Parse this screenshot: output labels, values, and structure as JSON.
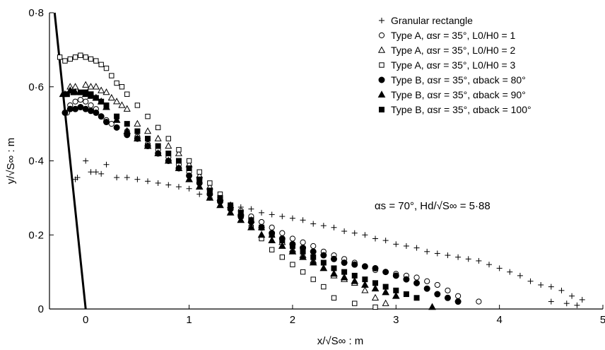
{
  "chart_data": {
    "type": "scatter",
    "xlabel": "x/√S∞ : m",
    "ylabel": "y/√S∞ : m",
    "xlim": [
      -0.35,
      5
    ],
    "ylim": [
      0,
      0.8
    ],
    "xticks": [
      0,
      1,
      2,
      3,
      4,
      5
    ],
    "xtick_labels": [
      "0",
      "1",
      "2",
      "3",
      "4",
      "5"
    ],
    "yticks": [
      0,
      0.2,
      0.4,
      0.6,
      0.8
    ],
    "ytick_labels": [
      "0",
      "0·2",
      "0·4",
      "0·6",
      "0·8"
    ],
    "grid": false,
    "legend_position": "top-right",
    "annotation": "αs = 70°, Hd/√S∞ = 5·88",
    "slope_line": {
      "x": [
        -0.3,
        0.0
      ],
      "y": [
        0.8,
        0.0
      ]
    },
    "series": [
      {
        "name": "Granular rectangle",
        "marker": "plus",
        "points": [
          [
            -0.1,
            0.35
          ],
          [
            -0.08,
            0.355
          ],
          [
            0.0,
            0.4
          ],
          [
            0.2,
            0.39
          ],
          [
            0.05,
            0.37
          ],
          [
            0.1,
            0.37
          ],
          [
            0.15,
            0.365
          ],
          [
            0.3,
            0.355
          ],
          [
            0.4,
            0.355
          ],
          [
            0.5,
            0.35
          ],
          [
            0.6,
            0.345
          ],
          [
            0.7,
            0.34
          ],
          [
            0.8,
            0.335
          ],
          [
            0.9,
            0.33
          ],
          [
            1.0,
            0.325
          ],
          [
            1.1,
            0.31
          ],
          [
            1.2,
            0.3
          ],
          [
            1.3,
            0.29
          ],
          [
            1.4,
            0.28
          ],
          [
            1.5,
            0.275
          ],
          [
            1.6,
            0.27
          ],
          [
            1.7,
            0.26
          ],
          [
            1.8,
            0.255
          ],
          [
            1.9,
            0.25
          ],
          [
            2.0,
            0.245
          ],
          [
            2.1,
            0.24
          ],
          [
            2.2,
            0.23
          ],
          [
            2.3,
            0.225
          ],
          [
            2.4,
            0.22
          ],
          [
            2.5,
            0.21
          ],
          [
            2.6,
            0.205
          ],
          [
            2.7,
            0.2
          ],
          [
            2.8,
            0.19
          ],
          [
            2.9,
            0.185
          ],
          [
            3.0,
            0.175
          ],
          [
            3.1,
            0.17
          ],
          [
            3.2,
            0.165
          ],
          [
            3.3,
            0.155
          ],
          [
            3.4,
            0.15
          ],
          [
            3.5,
            0.145
          ],
          [
            3.6,
            0.14
          ],
          [
            3.7,
            0.135
          ],
          [
            3.8,
            0.13
          ],
          [
            3.9,
            0.12
          ],
          [
            4.0,
            0.11
          ],
          [
            4.1,
            0.1
          ],
          [
            4.2,
            0.09
          ],
          [
            4.3,
            0.075
          ],
          [
            4.4,
            0.065
          ],
          [
            4.5,
            0.06
          ],
          [
            4.6,
            0.05
          ],
          [
            4.7,
            0.035
          ],
          [
            4.8,
            0.025
          ],
          [
            4.5,
            0.02
          ],
          [
            4.65,
            0.015
          ],
          [
            4.75,
            0.01
          ]
        ]
      },
      {
        "name": "Type A, αsr = 35°, L0/H0 = 1",
        "marker": "circle-open",
        "points": [
          [
            -0.18,
            0.53
          ],
          [
            -0.15,
            0.55
          ],
          [
            -0.1,
            0.56
          ],
          [
            -0.05,
            0.565
          ],
          [
            0.0,
            0.56
          ],
          [
            0.05,
            0.55
          ],
          [
            0.1,
            0.54
          ],
          [
            0.15,
            0.52
          ],
          [
            0.2,
            0.51
          ],
          [
            0.25,
            0.5
          ],
          [
            0.3,
            0.49
          ],
          [
            0.4,
            0.48
          ],
          [
            0.5,
            0.465
          ],
          [
            0.6,
            0.445
          ],
          [
            0.7,
            0.43
          ],
          [
            0.8,
            0.41
          ],
          [
            0.9,
            0.39
          ],
          [
            1.0,
            0.37
          ],
          [
            1.1,
            0.35
          ],
          [
            1.2,
            0.32
          ],
          [
            1.3,
            0.3
          ],
          [
            1.4,
            0.28
          ],
          [
            1.5,
            0.265
          ],
          [
            1.6,
            0.25
          ],
          [
            1.7,
            0.235
          ],
          [
            1.8,
            0.22
          ],
          [
            1.9,
            0.205
          ],
          [
            2.0,
            0.19
          ],
          [
            2.1,
            0.18
          ],
          [
            2.2,
            0.17
          ],
          [
            2.3,
            0.155
          ],
          [
            2.4,
            0.145
          ],
          [
            2.5,
            0.135
          ],
          [
            2.6,
            0.125
          ],
          [
            2.7,
            0.115
          ],
          [
            2.8,
            0.105
          ],
          [
            2.9,
            0.1
          ],
          [
            3.0,
            0.095
          ],
          [
            3.1,
            0.09
          ],
          [
            3.2,
            0.085
          ],
          [
            3.3,
            0.075
          ],
          [
            3.4,
            0.065
          ],
          [
            3.5,
            0.05
          ],
          [
            3.6,
            0.035
          ],
          [
            3.8,
            0.02
          ]
        ]
      },
      {
        "name": "Type A, αsr = 35°, L0/H0 = 2",
        "marker": "triangle-open",
        "points": [
          [
            -0.2,
            0.58
          ],
          [
            -0.15,
            0.6
          ],
          [
            -0.1,
            0.6
          ],
          [
            0.0,
            0.605
          ],
          [
            0.05,
            0.6
          ],
          [
            0.1,
            0.6
          ],
          [
            0.15,
            0.59
          ],
          [
            0.2,
            0.585
          ],
          [
            0.25,
            0.57
          ],
          [
            0.3,
            0.56
          ],
          [
            0.35,
            0.55
          ],
          [
            0.4,
            0.54
          ],
          [
            0.5,
            0.5
          ],
          [
            0.6,
            0.48
          ],
          [
            0.7,
            0.46
          ],
          [
            0.8,
            0.44
          ],
          [
            0.9,
            0.42
          ],
          [
            1.0,
            0.39
          ],
          [
            1.1,
            0.36
          ],
          [
            1.2,
            0.33
          ],
          [
            1.3,
            0.3
          ],
          [
            1.4,
            0.28
          ],
          [
            1.5,
            0.26
          ],
          [
            1.6,
            0.24
          ],
          [
            1.7,
            0.22
          ],
          [
            1.8,
            0.2
          ],
          [
            1.9,
            0.18
          ],
          [
            2.0,
            0.16
          ],
          [
            2.1,
            0.145
          ],
          [
            2.2,
            0.13
          ],
          [
            2.3,
            0.11
          ],
          [
            2.4,
            0.09
          ],
          [
            2.5,
            0.08
          ],
          [
            2.6,
            0.07
          ],
          [
            2.7,
            0.05
          ],
          [
            2.8,
            0.03
          ],
          [
            2.9,
            0.015
          ]
        ]
      },
      {
        "name": "Type A, αsr = 35°, L0/H0 = 3",
        "marker": "square-open",
        "points": [
          [
            -0.25,
            0.68
          ],
          [
            -0.2,
            0.67
          ],
          [
            -0.15,
            0.675
          ],
          [
            -0.1,
            0.68
          ],
          [
            -0.05,
            0.685
          ],
          [
            0.0,
            0.68
          ],
          [
            0.05,
            0.675
          ],
          [
            0.1,
            0.67
          ],
          [
            0.15,
            0.66
          ],
          [
            0.2,
            0.65
          ],
          [
            0.25,
            0.63
          ],
          [
            0.3,
            0.61
          ],
          [
            0.35,
            0.6
          ],
          [
            0.4,
            0.58
          ],
          [
            0.5,
            0.55
          ],
          [
            0.6,
            0.52
          ],
          [
            0.7,
            0.49
          ],
          [
            0.8,
            0.46
          ],
          [
            0.9,
            0.43
          ],
          [
            1.0,
            0.4
          ],
          [
            1.1,
            0.37
          ],
          [
            1.2,
            0.34
          ],
          [
            1.3,
            0.31
          ],
          [
            1.4,
            0.28
          ],
          [
            1.5,
            0.25
          ],
          [
            1.6,
            0.22
          ],
          [
            1.7,
            0.19
          ],
          [
            1.8,
            0.16
          ],
          [
            1.9,
            0.14
          ],
          [
            2.0,
            0.12
          ],
          [
            2.1,
            0.1
          ],
          [
            2.2,
            0.08
          ],
          [
            2.3,
            0.06
          ],
          [
            2.4,
            0.03
          ],
          [
            2.6,
            0.015
          ],
          [
            2.8,
            0.005
          ]
        ]
      },
      {
        "name": "Type B, αsr = 35°, αback = 80°",
        "marker": "circle-filled",
        "points": [
          [
            -0.2,
            0.53
          ],
          [
            -0.15,
            0.54
          ],
          [
            -0.1,
            0.54
          ],
          [
            -0.05,
            0.545
          ],
          [
            0.0,
            0.54
          ],
          [
            0.05,
            0.535
          ],
          [
            0.1,
            0.53
          ],
          [
            0.15,
            0.52
          ],
          [
            0.2,
            0.505
          ],
          [
            0.3,
            0.49
          ],
          [
            0.4,
            0.47
          ],
          [
            0.5,
            0.46
          ],
          [
            0.6,
            0.44
          ],
          [
            0.7,
            0.42
          ],
          [
            0.8,
            0.4
          ],
          [
            0.9,
            0.38
          ],
          [
            1.0,
            0.36
          ],
          [
            1.1,
            0.34
          ],
          [
            1.2,
            0.31
          ],
          [
            1.3,
            0.29
          ],
          [
            1.4,
            0.27
          ],
          [
            1.5,
            0.25
          ],
          [
            1.6,
            0.235
          ],
          [
            1.7,
            0.22
          ],
          [
            1.8,
            0.205
          ],
          [
            1.9,
            0.19
          ],
          [
            2.0,
            0.175
          ],
          [
            2.1,
            0.165
          ],
          [
            2.2,
            0.155
          ],
          [
            2.3,
            0.145
          ],
          [
            2.4,
            0.135
          ],
          [
            2.5,
            0.125
          ],
          [
            2.6,
            0.12
          ],
          [
            2.7,
            0.115
          ],
          [
            2.8,
            0.11
          ],
          [
            2.9,
            0.1
          ],
          [
            3.0,
            0.09
          ],
          [
            3.1,
            0.08
          ],
          [
            3.2,
            0.07
          ],
          [
            3.3,
            0.055
          ],
          [
            3.4,
            0.04
          ],
          [
            3.5,
            0.03
          ],
          [
            3.6,
            0.02
          ]
        ]
      },
      {
        "name": "Type B, αsr = 35°, αback = 90°",
        "marker": "triangle-filled",
        "points": [
          [
            -0.22,
            0.58
          ],
          [
            -0.15,
            0.59
          ],
          [
            -0.1,
            0.585
          ],
          [
            0.0,
            0.58
          ],
          [
            0.05,
            0.575
          ],
          [
            0.1,
            0.57
          ],
          [
            0.15,
            0.56
          ],
          [
            0.2,
            0.545
          ],
          [
            0.3,
            0.51
          ],
          [
            0.4,
            0.48
          ],
          [
            0.5,
            0.46
          ],
          [
            0.6,
            0.44
          ],
          [
            0.7,
            0.42
          ],
          [
            0.8,
            0.4
          ],
          [
            0.9,
            0.38
          ],
          [
            1.0,
            0.35
          ],
          [
            1.1,
            0.33
          ],
          [
            1.2,
            0.3
          ],
          [
            1.3,
            0.28
          ],
          [
            1.4,
            0.26
          ],
          [
            1.5,
            0.24
          ],
          [
            1.6,
            0.22
          ],
          [
            1.7,
            0.2
          ],
          [
            1.8,
            0.185
          ],
          [
            1.9,
            0.17
          ],
          [
            2.0,
            0.155
          ],
          [
            2.1,
            0.14
          ],
          [
            2.2,
            0.125
          ],
          [
            2.3,
            0.11
          ],
          [
            2.4,
            0.095
          ],
          [
            2.5,
            0.085
          ],
          [
            2.6,
            0.075
          ],
          [
            2.7,
            0.065
          ],
          [
            2.8,
            0.055
          ],
          [
            2.9,
            0.045
          ],
          [
            3.0,
            0.035
          ],
          [
            3.35,
            0.005
          ]
        ]
      },
      {
        "name": "Type B, αsr = 35°, αback = 100°",
        "marker": "square-filled",
        "points": [
          [
            -0.18,
            0.58
          ],
          [
            -0.12,
            0.585
          ],
          [
            -0.05,
            0.585
          ],
          [
            0.0,
            0.585
          ],
          [
            0.05,
            0.58
          ],
          [
            0.1,
            0.57
          ],
          [
            0.15,
            0.56
          ],
          [
            0.2,
            0.55
          ],
          [
            0.3,
            0.52
          ],
          [
            0.4,
            0.5
          ],
          [
            0.5,
            0.48
          ],
          [
            0.6,
            0.46
          ],
          [
            0.7,
            0.44
          ],
          [
            0.8,
            0.42
          ],
          [
            0.9,
            0.4
          ],
          [
            1.0,
            0.38
          ],
          [
            1.1,
            0.35
          ],
          [
            1.2,
            0.32
          ],
          [
            1.3,
            0.3
          ],
          [
            1.4,
            0.28
          ],
          [
            1.5,
            0.26
          ],
          [
            1.6,
            0.24
          ],
          [
            1.7,
            0.22
          ],
          [
            1.8,
            0.2
          ],
          [
            1.9,
            0.185
          ],
          [
            2.0,
            0.17
          ],
          [
            2.1,
            0.155
          ],
          [
            2.2,
            0.14
          ],
          [
            2.3,
            0.125
          ],
          [
            2.4,
            0.11
          ],
          [
            2.5,
            0.1
          ],
          [
            2.6,
            0.09
          ],
          [
            2.7,
            0.08
          ],
          [
            2.8,
            0.07
          ],
          [
            2.9,
            0.06
          ],
          [
            3.0,
            0.05
          ],
          [
            3.1,
            0.04
          ],
          [
            3.2,
            0.03
          ]
        ]
      }
    ]
  }
}
